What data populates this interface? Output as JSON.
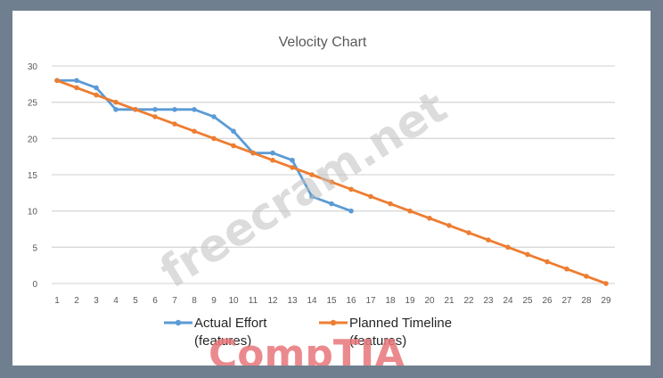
{
  "chart_data": {
    "type": "line",
    "title": "Velocity Chart",
    "xlabel": "",
    "ylabel": "",
    "ylim": [
      0,
      30
    ],
    "yticks": [
      0,
      5,
      10,
      15,
      20,
      25,
      30
    ],
    "x": [
      1,
      2,
      3,
      4,
      5,
      6,
      7,
      8,
      9,
      10,
      11,
      12,
      13,
      14,
      15,
      16,
      17,
      18,
      19,
      20,
      21,
      22,
      23,
      24,
      25,
      26,
      27,
      28,
      29
    ],
    "grid": true,
    "legend_position": "bottom",
    "series": [
      {
        "name": "Actual Effort (features)",
        "color": "#5b9bd5",
        "x": [
          1,
          2,
          3,
          4,
          5,
          6,
          7,
          8,
          9,
          10,
          11,
          12,
          13,
          14,
          15,
          16
        ],
        "values": [
          28,
          28,
          27,
          24,
          24,
          24,
          24,
          24,
          23,
          21,
          18,
          18,
          17,
          12,
          11,
          10
        ]
      },
      {
        "name": "Planned Timeline (features)",
        "color": "#ed7d31",
        "x": [
          1,
          2,
          3,
          4,
          5,
          6,
          7,
          8,
          9,
          10,
          11,
          12,
          13,
          14,
          15,
          16,
          17,
          18,
          19,
          20,
          21,
          22,
          23,
          24,
          25,
          26,
          27,
          28,
          29
        ],
        "values": [
          28,
          27,
          26,
          25,
          24,
          23,
          22,
          21,
          20,
          19,
          18,
          17,
          16,
          15,
          14,
          13,
          12,
          11,
          10,
          9,
          8,
          7,
          6,
          5,
          4,
          3,
          2,
          1,
          0
        ]
      }
    ]
  },
  "legend": {
    "actual": {
      "line1": "Actual Effort",
      "line2": "(features)"
    },
    "planned": {
      "line1": "Planned Timeline",
      "line2": "(features)"
    }
  },
  "watermarks": {
    "site": "freecram.net",
    "brand": "CompTIA",
    "brand_color": "#e8757a"
  }
}
